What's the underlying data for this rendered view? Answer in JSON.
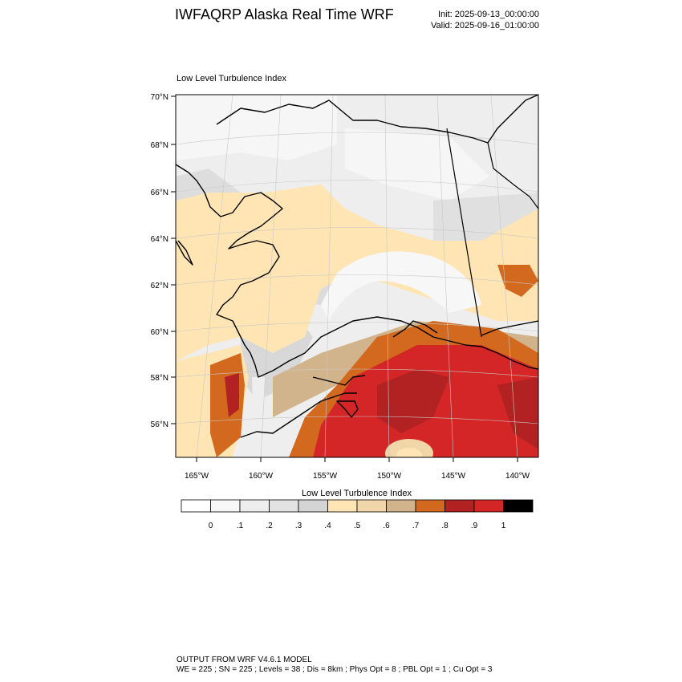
{
  "header": {
    "title": "IWFAQRP Alaska Real Time WRF",
    "init": "Init: 2025-09-13_00:00:00",
    "valid": "Valid: 2025-09-16_01:00:00"
  },
  "map": {
    "title": "Low Level Turbulence Index",
    "lat_labels": [
      "70°N",
      "68°N",
      "66°N",
      "64°N",
      "62°N",
      "60°N",
      "58°N",
      "56°N"
    ],
    "lon_labels": [
      "165°W",
      "160°W",
      "155°W",
      "150°W",
      "145°W",
      "140°W"
    ]
  },
  "colorbar": {
    "title": "Low Level Turbulence Index",
    "labels": [
      "0",
      ".1",
      ".2",
      ".3",
      ".4",
      ".5",
      ".6",
      ".7",
      ".8",
      ".9",
      "1"
    ],
    "colors": [
      "#ffffff",
      "#f7f7f7",
      "#eeeeee",
      "#e2e2e2",
      "#d4d4d4",
      "#ffe4b4",
      "#f0d6a8",
      "#d2b48c",
      "#d2691e",
      "#b22222",
      "#d42626",
      "#000000"
    ]
  },
  "footer": {
    "line1": "OUTPUT FROM WRF V4.6.1 MODEL",
    "line2": "WE = 225 ; SN = 225 ; Levels = 38 ; Dis = 8km ; Phys Opt = 8 ; PBL Opt = 1 ; Cu Opt = 3"
  }
}
